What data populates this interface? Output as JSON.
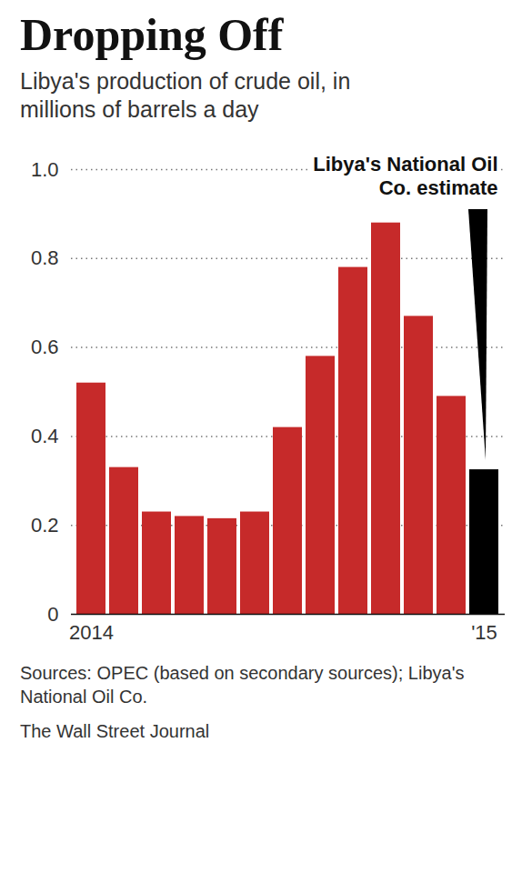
{
  "chart_data": {
    "type": "bar",
    "title": "Dropping Off",
    "subtitle": "Libya's production of crude oil, in millions of barrels a day",
    "categories": [
      "2014",
      null,
      null,
      null,
      null,
      null,
      null,
      null,
      null,
      null,
      null,
      null,
      "'15"
    ],
    "values": [
      0.52,
      0.33,
      0.23,
      0.22,
      0.215,
      0.23,
      0.42,
      0.58,
      0.78,
      0.88,
      0.67,
      0.49,
      0.325
    ],
    "colors": [
      "#c62a2a",
      "#c62a2a",
      "#c62a2a",
      "#c62a2a",
      "#c62a2a",
      "#c62a2a",
      "#c62a2a",
      "#c62a2a",
      "#c62a2a",
      "#c62a2a",
      "#c62a2a",
      "#c62a2a",
      "#000000"
    ],
    "ylim": [
      0,
      1
    ],
    "yticks": [
      0,
      0.2,
      0.4,
      0.6,
      0.8,
      {
        "value": 1,
        "label": "1.0"
      }
    ],
    "grid": true,
    "annotation": "Libya's National Oil\nCo. estimate",
    "source": "Sources: OPEC (based on secondary sources); Libya's National Oil Co.",
    "credit": "The Wall Street Journal"
  }
}
